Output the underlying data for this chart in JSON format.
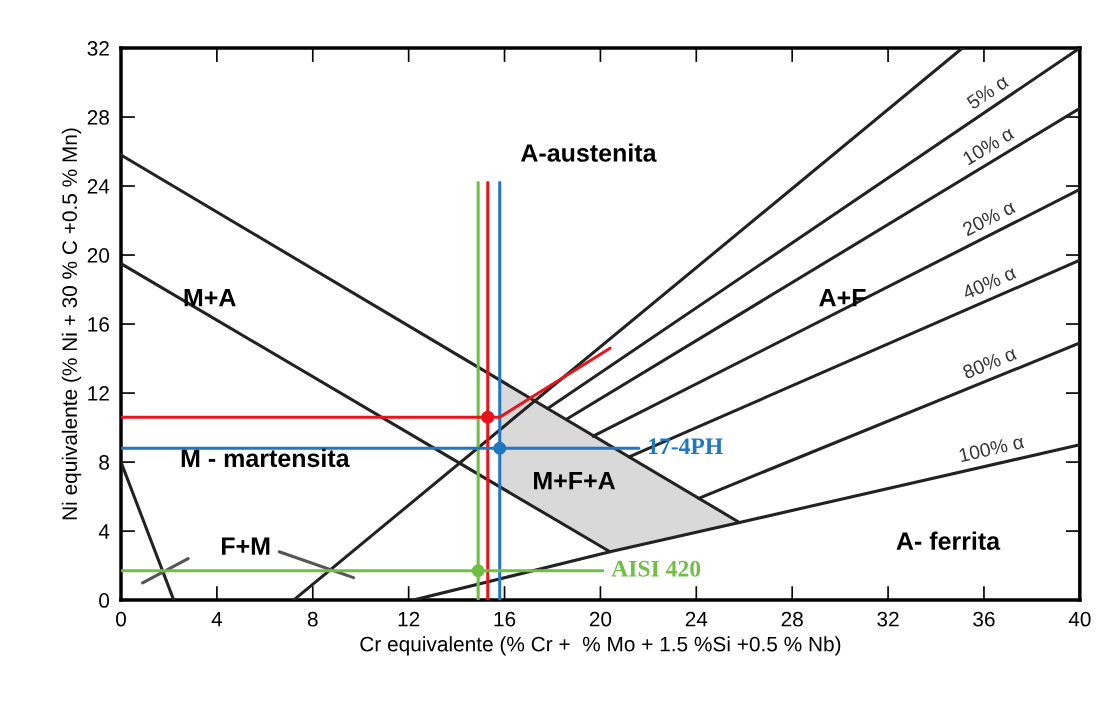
{
  "chart_data": {
    "type": "line",
    "xlabel": "Cr equivalente (% Cr +  % Mo + 1.5 %Si +0.5 % Nb)",
    "ylabel": "Ni equivalente (% Ni + 30 % C +0.5 % Mn)",
    "xlim": [
      0,
      40
    ],
    "xticks": [
      0,
      4,
      8,
      12,
      16,
      20,
      24,
      28,
      32,
      36,
      40
    ],
    "ylim": [
      0,
      32
    ],
    "yticks": [
      0,
      4,
      8,
      12,
      16,
      20,
      24,
      28,
      32
    ],
    "grid": false,
    "legend": false,
    "series": [
      {
        "type": "area",
        "color": "#d9d9d9",
        "x": [
          15.8,
          25.8,
          20.4,
          15.8
        ],
        "values": [
          12.8,
          4.5,
          2.8,
          6.6
        ]
      },
      {
        "color": "#222222",
        "x": [
          0,
          25.8
        ],
        "values": [
          25.8,
          4.5
        ]
      },
      {
        "color": "#222222",
        "x": [
          0,
          20.4
        ],
        "values": [
          19.5,
          2.8
        ]
      },
      {
        "color": "#222222",
        "x": [
          0,
          2.2
        ],
        "values": [
          8.0,
          0
        ]
      },
      {
        "color": "#222222",
        "x": [
          7.2,
          35.1
        ],
        "values": [
          0,
          32
        ]
      },
      {
        "name": "5% α",
        "color": "#222222",
        "x": [
          17.8,
          40
        ],
        "values": [
          11.1,
          32
        ]
      },
      {
        "name": "10% α",
        "color": "#222222",
        "x": [
          18.6,
          40
        ],
        "values": [
          10.5,
          28.5
        ]
      },
      {
        "name": "20% α",
        "color": "#222222",
        "x": [
          19.7,
          40
        ],
        "values": [
          9.5,
          23.8
        ]
      },
      {
        "name": "40% α",
        "color": "#222222",
        "x": [
          21.2,
          40
        ],
        "values": [
          8.3,
          19.7
        ]
      },
      {
        "name": "80% α",
        "color": "#222222",
        "x": [
          24.1,
          40
        ],
        "values": [
          5.9,
          14.9
        ]
      },
      {
        "name": "100% α",
        "color": "#222222",
        "x": [
          12.2,
          20.4,
          25.8,
          40
        ],
        "values": [
          0,
          2.8,
          4.5,
          9.0
        ]
      },
      {
        "color": "#555555",
        "x": [
          2.8,
          0.9
        ],
        "values": [
          2.4,
          1.0
        ]
      },
      {
        "color": "#555555",
        "x": [
          6.6,
          9.7
        ],
        "values": [
          2.8,
          1.3
        ]
      },
      {
        "color": "#70bf44",
        "x": [
          14.9,
          14.9
        ],
        "values": [
          0,
          24.2
        ]
      },
      {
        "color": "#e8141b",
        "x": [
          15.3,
          15.3
        ],
        "values": [
          0,
          24.2
        ]
      },
      {
        "color": "#1f78c1",
        "x": [
          15.8,
          15.8
        ],
        "values": [
          0,
          24.2
        ]
      },
      {
        "color": "#e8141b",
        "x": [
          0,
          15.3,
          15.8,
          20.4
        ],
        "values": [
          10.6,
          10.6,
          10.6,
          14.6
        ]
      },
      {
        "name": "17-4PH",
        "color": "#1f78c1",
        "x": [
          0,
          15.8,
          21.6
        ],
        "values": [
          8.8,
          8.8,
          8.8
        ]
      },
      {
        "name": "AISI 420",
        "color": "#70bf44",
        "x": [
          0,
          14.9,
          20.1
        ],
        "values": [
          1.7,
          1.7,
          1.7
        ]
      },
      {
        "type": "scatter",
        "marker": "circle",
        "color": "#e8141b",
        "x": [
          15.3
        ],
        "values": [
          10.6
        ]
      },
      {
        "type": "scatter",
        "marker": "circle",
        "color": "#1f78c1",
        "x": [
          15.8
        ],
        "values": [
          8.8
        ]
      },
      {
        "type": "scatter",
        "marker": "circle",
        "color": "#70bf44",
        "x": [
          14.9
        ],
        "values": [
          1.7
        ]
      }
    ],
    "annotations": [
      "A-austenita",
      "M+A",
      "A+F",
      "M - martensita",
      "M+F+A",
      "F+M",
      "A- ferrita"
    ]
  }
}
